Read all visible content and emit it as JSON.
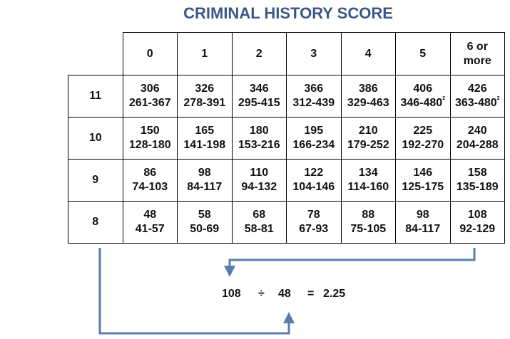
{
  "title": "CRIMINAL HISTORY SCORE",
  "table": {
    "columns": [
      "0",
      "1",
      "2",
      "3",
      "4",
      "5",
      "6 or more"
    ],
    "rows": [
      {
        "label": "11",
        "cells": [
          {
            "value": "306",
            "range": "261-367"
          },
          {
            "value": "326",
            "range": "278-391"
          },
          {
            "value": "346",
            "range": "295-415"
          },
          {
            "value": "366",
            "range": "312-439"
          },
          {
            "value": "386",
            "range": "329-463"
          },
          {
            "value": "406",
            "range": "346-480",
            "note": "2"
          },
          {
            "value": "426",
            "range": "363-480",
            "note": "2"
          }
        ]
      },
      {
        "label": "10",
        "cells": [
          {
            "value": "150",
            "range": "128-180"
          },
          {
            "value": "165",
            "range": "141-198"
          },
          {
            "value": "180",
            "range": "153-216"
          },
          {
            "value": "195",
            "range": "166-234"
          },
          {
            "value": "210",
            "range": "179-252"
          },
          {
            "value": "225",
            "range": "192-270"
          },
          {
            "value": "240",
            "range": "204-288"
          }
        ]
      },
      {
        "label": "9",
        "cells": [
          {
            "value": "86",
            "range": "74-103"
          },
          {
            "value": "98",
            "range": "84-117"
          },
          {
            "value": "110",
            "range": "94-132"
          },
          {
            "value": "122",
            "range": "104-146"
          },
          {
            "value": "134",
            "range": "114-160"
          },
          {
            "value": "146",
            "range": "125-175"
          },
          {
            "value": "158",
            "range": "135-189"
          }
        ]
      },
      {
        "label": "8",
        "cells": [
          {
            "value": "48",
            "range": "41-57"
          },
          {
            "value": "58",
            "range": "50-69"
          },
          {
            "value": "68",
            "range": "58-81"
          },
          {
            "value": "78",
            "range": "67-93"
          },
          {
            "value": "88",
            "range": "75-105"
          },
          {
            "value": "98",
            "range": "84-117"
          },
          {
            "value": "108",
            "range": "92-129"
          }
        ]
      }
    ]
  },
  "equation": [
    "108",
    "÷",
    "48",
    "=",
    "2.25"
  ]
}
